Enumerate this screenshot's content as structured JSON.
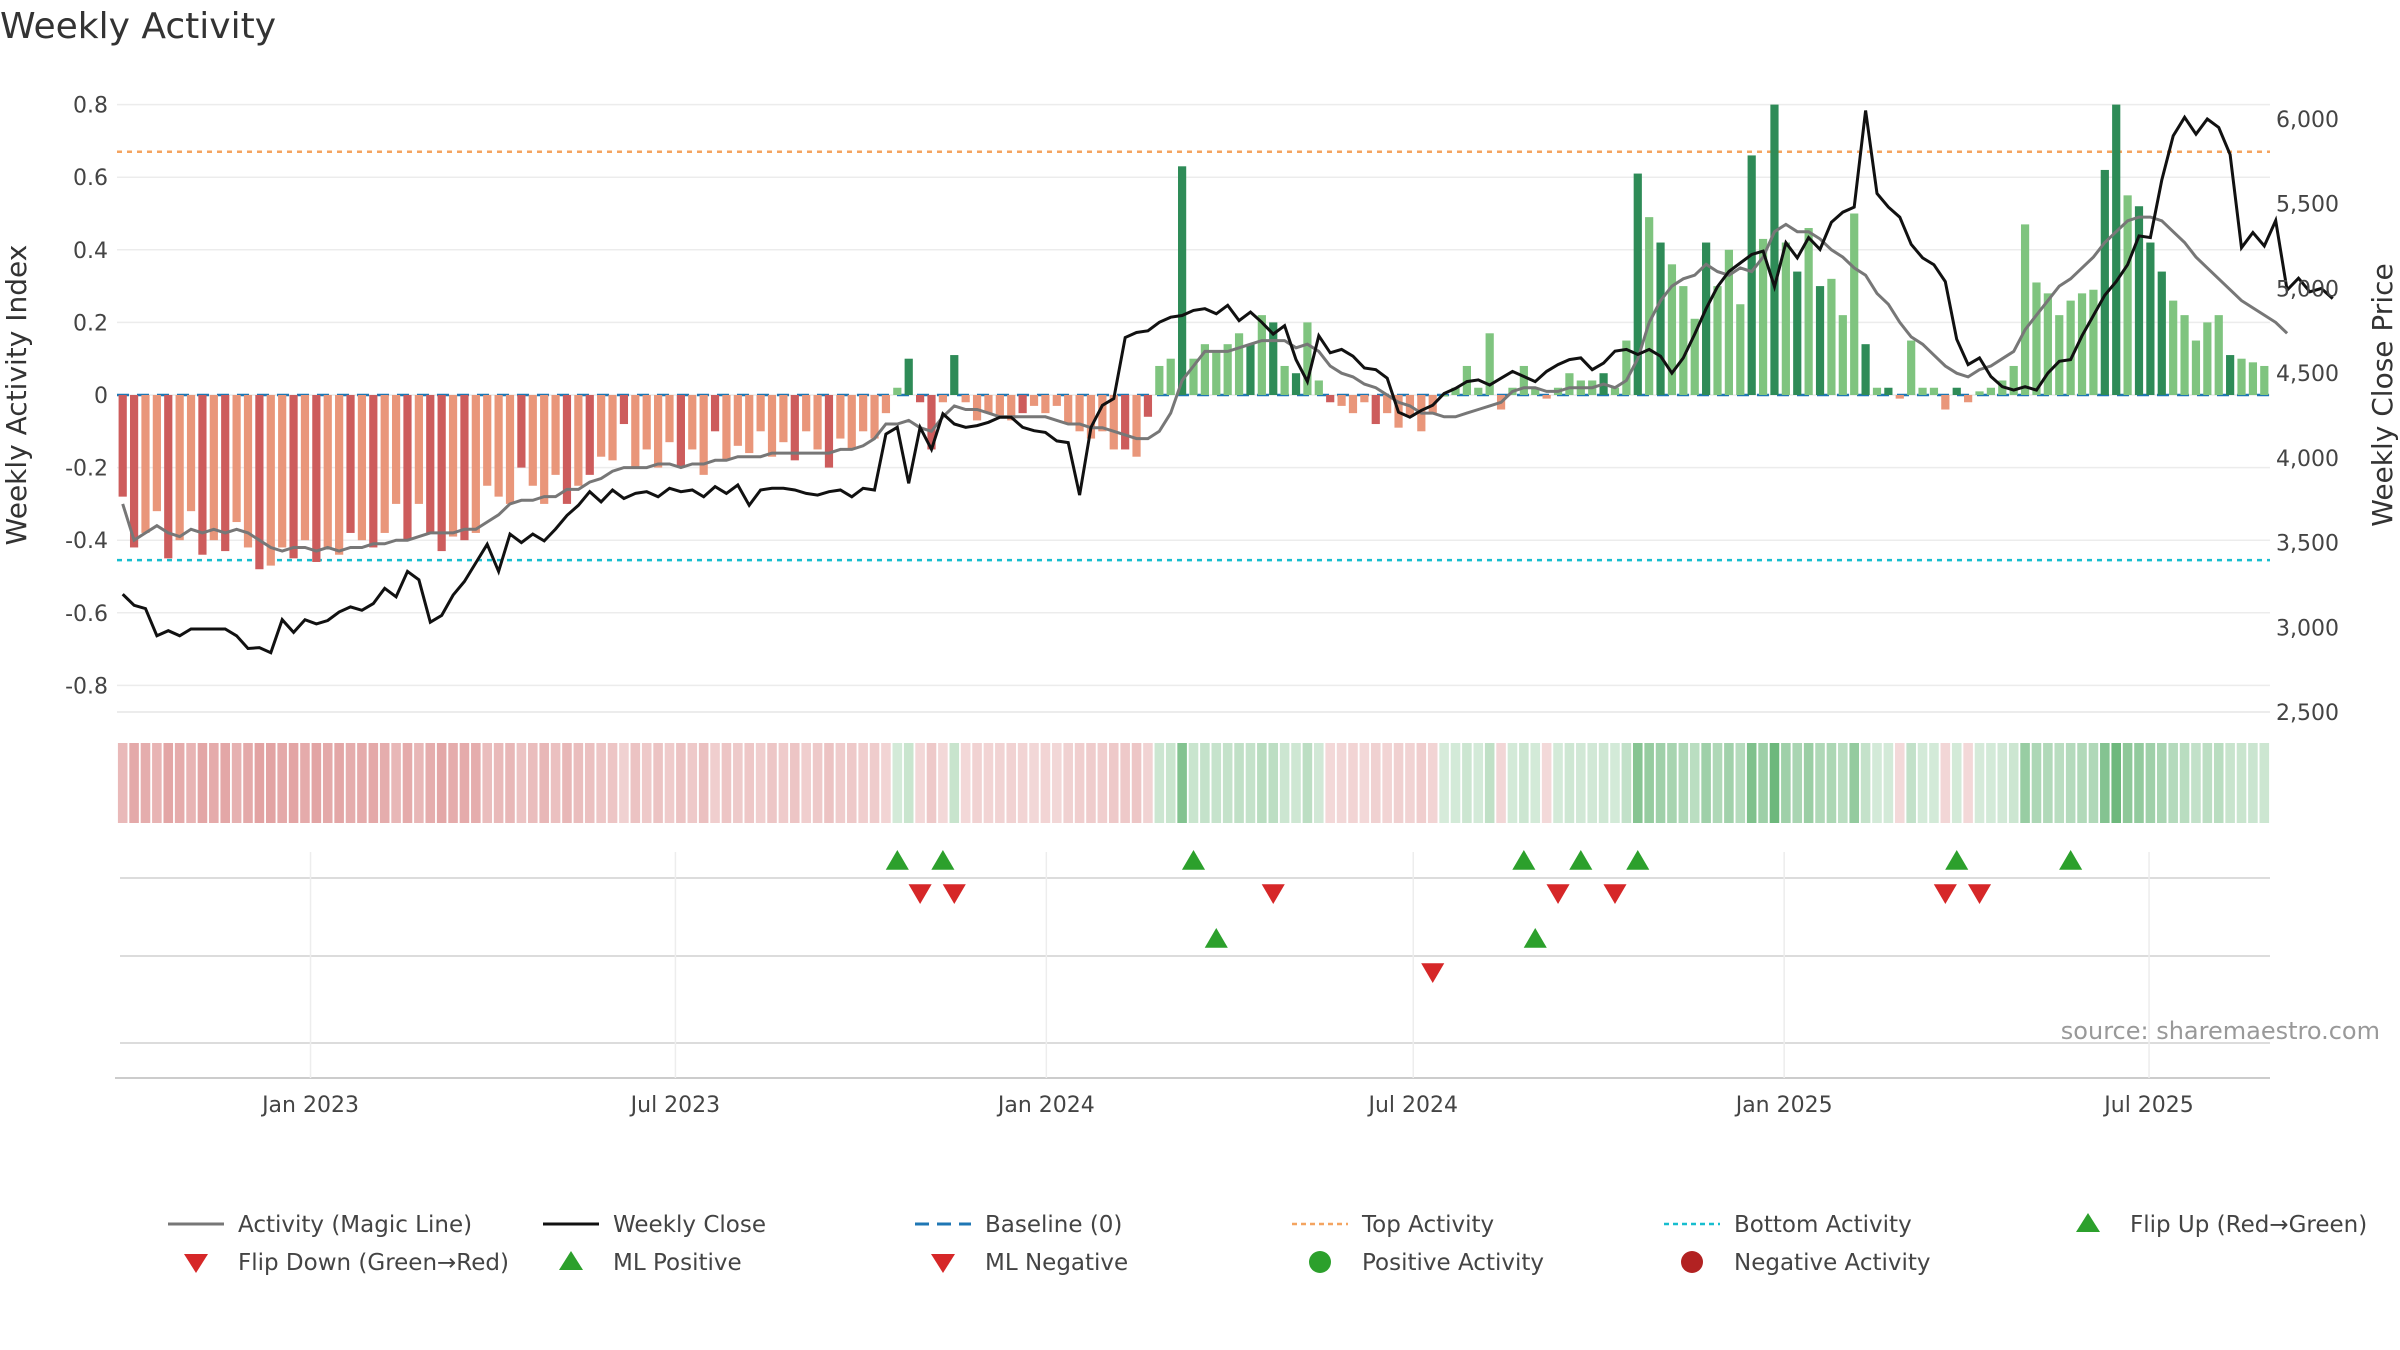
{
  "chart_data": {
    "type": "bar",
    "title": "Weekly Activity",
    "ylabel_left": "Weekly Activity Index",
    "ylabel_right": "Weekly Close Price",
    "left_axis": {
      "ylim": [
        -0.88,
        0.8
      ],
      "ticks": [
        "0.8",
        "0.6",
        "0.4",
        "0.2",
        "0",
        "-0.2",
        "-0.4",
        "-0.6",
        "-0.8"
      ],
      "tick_values": [
        0.8,
        0.6,
        0.4,
        0.2,
        0,
        -0.2,
        -0.4,
        -0.6,
        -0.8
      ]
    },
    "right_axis": {
      "ylim": [
        2500,
        6250
      ],
      "ticks": [
        "6,000",
        "5,500",
        "5,000",
        "4,500",
        "4,000",
        "3,500",
        "3,000",
        "2,500"
      ],
      "tick_values": [
        6000,
        5500,
        5000,
        4500,
        4000,
        3500,
        3000,
        2500
      ]
    },
    "x_range_days": [
      0,
      1068
    ],
    "x_ticks": [
      {
        "label": "Jan 2023",
        "day": 96
      },
      {
        "label": "Jul 2023",
        "day": 277
      },
      {
        "label": "Jan 2024",
        "day": 461
      },
      {
        "label": "Jul 2024",
        "day": 643
      },
      {
        "label": "Jan 2025",
        "day": 827
      },
      {
        "label": "Jul 2025",
        "day": 1008
      }
    ],
    "reference_lines": {
      "top_activity": 0.67,
      "bottom_activity": -0.455,
      "baseline": 0
    },
    "colors": {
      "strong_green": "#2e8b57",
      "light_green": "#7fc47f",
      "strong_red": "#cd5c5c",
      "light_red": "#e9967a",
      "magic_line": "#777777",
      "close_line": "#111111",
      "baseline": "#1f77b4",
      "top": "#f4a460",
      "bottom": "#17becf",
      "marker_up": "#2ca02c",
      "marker_down": "#d62728",
      "dot_green": "#2ca02c",
      "dot_red": "#b22222"
    },
    "activity_values": [
      -0.28,
      -0.42,
      -0.38,
      -0.32,
      -0.45,
      -0.4,
      -0.32,
      -0.44,
      -0.4,
      -0.43,
      -0.35,
      -0.42,
      -0.48,
      -0.47,
      -0.42,
      -0.45,
      -0.4,
      -0.46,
      -0.42,
      -0.44,
      -0.38,
      -0.4,
      -0.42,
      -0.38,
      -0.3,
      -0.4,
      -0.3,
      -0.38,
      -0.43,
      -0.39,
      -0.4,
      -0.38,
      -0.25,
      -0.28,
      -0.3,
      -0.2,
      -0.25,
      -0.3,
      -0.22,
      -0.3,
      -0.25,
      -0.22,
      -0.17,
      -0.18,
      -0.08,
      -0.2,
      -0.15,
      -0.2,
      -0.13,
      -0.2,
      -0.15,
      -0.22,
      -0.1,
      -0.18,
      -0.14,
      -0.16,
      -0.1,
      -0.17,
      -0.13,
      -0.18,
      -0.1,
      -0.15,
      -0.2,
      -0.12,
      -0.15,
      -0.1,
      -0.12,
      -0.05,
      0.02,
      0.1,
      -0.02,
      -0.15,
      -0.02,
      0.11,
      -0.02,
      -0.07,
      -0.05,
      -0.06,
      -0.07,
      -0.05,
      -0.03,
      -0.05,
      -0.03,
      -0.08,
      -0.1,
      -0.12,
      -0.1,
      -0.15,
      -0.15,
      -0.17,
      -0.06,
      0.08,
      0.1,
      0.63,
      0.1,
      0.14,
      0.12,
      0.14,
      0.17,
      0.14,
      0.22,
      0.2,
      0.08,
      0.06,
      0.2,
      0.04,
      -0.02,
      -0.03,
      -0.05,
      -0.02,
      -0.08,
      -0.05,
      -0.09,
      -0.06,
      -0.1,
      -0.05,
      0,
      0.02,
      0.08,
      0.02,
      0.17,
      -0.04,
      0.02,
      0.08,
      0.02,
      -0.01,
      0.02,
      0.06,
      0.04,
      0.04,
      0.06,
      0.02,
      0.15,
      0.61,
      0.49,
      0.42,
      0.36,
      0.3,
      0.21,
      0.42,
      0.3,
      0.4,
      0.25,
      0.66,
      0.43,
      0.8,
      0.42,
      0.34,
      0.46,
      0.3,
      0.32,
      0.22,
      0.5,
      0.14,
      0.02,
      0.02,
      -0.01,
      0.15,
      0.02,
      0.02,
      -0.04,
      0.02,
      -0.02,
      0.01,
      0.02,
      0.04,
      0.08,
      0.47,
      0.31,
      0.28,
      0.22,
      0.26,
      0.28,
      0.29,
      0.62,
      0.8,
      0.55,
      0.52,
      0.42,
      0.34,
      0.26,
      0.22,
      0.15,
      0.2,
      0.22,
      0.11,
      0.1,
      0.09,
      0.08
    ],
    "strong_indices": [
      0,
      1,
      4,
      7,
      9,
      12,
      15,
      17,
      20,
      22,
      25,
      27,
      28,
      30,
      35,
      39,
      41,
      44,
      49,
      52,
      59,
      62,
      69,
      70,
      71,
      73,
      79,
      88,
      90,
      93,
      99,
      101,
      103,
      106,
      110,
      130,
      133,
      135,
      139,
      143,
      145,
      147,
      149,
      153,
      155,
      161,
      174,
      175,
      177,
      178,
      179,
      185,
      191
    ],
    "magic_line": [
      -0.3,
      -0.4,
      -0.38,
      -0.36,
      -0.38,
      -0.39,
      -0.37,
      -0.38,
      -0.37,
      -0.38,
      -0.37,
      -0.38,
      -0.4,
      -0.42,
      -0.43,
      -0.42,
      -0.42,
      -0.43,
      -0.42,
      -0.43,
      -0.42,
      -0.42,
      -0.41,
      -0.41,
      -0.4,
      -0.4,
      -0.39,
      -0.38,
      -0.38,
      -0.38,
      -0.37,
      -0.37,
      -0.35,
      -0.33,
      -0.3,
      -0.29,
      -0.29,
      -0.28,
      -0.28,
      -0.26,
      -0.26,
      -0.24,
      -0.23,
      -0.21,
      -0.2,
      -0.2,
      -0.2,
      -0.19,
      -0.19,
      -0.2,
      -0.19,
      -0.19,
      -0.18,
      -0.18,
      -0.17,
      -0.17,
      -0.17,
      -0.16,
      -0.16,
      -0.16,
      -0.16,
      -0.16,
      -0.16,
      -0.15,
      -0.15,
      -0.14,
      -0.12,
      -0.08,
      -0.08,
      -0.07,
      -0.09,
      -0.1,
      -0.06,
      -0.03,
      -0.04,
      -0.04,
      -0.05,
      -0.06,
      -0.06,
      -0.06,
      -0.06,
      -0.06,
      -0.07,
      -0.08,
      -0.08,
      -0.09,
      -0.09,
      -0.1,
      -0.11,
      -0.12,
      -0.12,
      -0.1,
      -0.05,
      0.04,
      0.08,
      0.12,
      0.12,
      0.12,
      0.13,
      0.14,
      0.15,
      0.15,
      0.15,
      0.13,
      0.14,
      0.12,
      0.08,
      0.06,
      0.05,
      0.03,
      0.02,
      0.0,
      -0.02,
      -0.03,
      -0.05,
      -0.05,
      -0.06,
      -0.06,
      -0.05,
      -0.04,
      -0.03,
      -0.02,
      0.01,
      0.02,
      0.02,
      0.01,
      0.01,
      0.02,
      0.02,
      0.02,
      0.03,
      0.02,
      0.04,
      0.1,
      0.2,
      0.26,
      0.3,
      0.32,
      0.33,
      0.36,
      0.34,
      0.33,
      0.35,
      0.34,
      0.38,
      0.45,
      0.47,
      0.45,
      0.45,
      0.43,
      0.4,
      0.38,
      0.35,
      0.33,
      0.28,
      0.25,
      0.2,
      0.16,
      0.14,
      0.11,
      0.08,
      0.06,
      0.05,
      0.07,
      0.08,
      0.1,
      0.12,
      0.18,
      0.22,
      0.26,
      0.3,
      0.32,
      0.35,
      0.38,
      0.42,
      0.45,
      0.48,
      0.49,
      0.49,
      0.48,
      0.45,
      0.42,
      0.38,
      0.35,
      0.32,
      0.29,
      0.26,
      0.24,
      0.22,
      0.2,
      0.17
    ],
    "weekly_close": [
      3195,
      3130,
      3110,
      2950,
      2980,
      2950,
      2990,
      2990,
      2990,
      2990,
      2950,
      2875,
      2880,
      2850,
      3045,
      2970,
      3045,
      3020,
      3040,
      3090,
      3120,
      3100,
      3140,
      3230,
      3180,
      3330,
      3280,
      3030,
      3070,
      3190,
      3270,
      3380,
      3490,
      3330,
      3550,
      3500,
      3550,
      3510,
      3580,
      3660,
      3720,
      3800,
      3740,
      3810,
      3760,
      3790,
      3800,
      3770,
      3820,
      3800,
      3810,
      3770,
      3830,
      3790,
      3840,
      3720,
      3810,
      3820,
      3820,
      3810,
      3790,
      3780,
      3800,
      3810,
      3770,
      3820,
      3810,
      4140,
      4180,
      3850,
      4180,
      4050,
      4260,
      4200,
      4180,
      4190,
      4210,
      4240,
      4240,
      4180,
      4160,
      4150,
      4100,
      4090,
      3780,
      4180,
      4310,
      4350,
      4710,
      4740,
      4750,
      4800,
      4830,
      4840,
      4870,
      4880,
      4850,
      4900,
      4810,
      4860,
      4800,
      4730,
      4780,
      4580,
      4450,
      4720,
      4620,
      4640,
      4600,
      4530,
      4520,
      4470,
      4270,
      4240,
      4280,
      4310,
      4380,
      4410,
      4450,
      4460,
      4430,
      4470,
      4510,
      4480,
      4450,
      4510,
      4550,
      4580,
      4590,
      4520,
      4560,
      4630,
      4640,
      4610,
      4640,
      4600,
      4500,
      4590,
      4730,
      4880,
      5010,
      5100,
      5150,
      5200,
      5220,
      5010,
      5270,
      5180,
      5300,
      5230,
      5390,
      5450,
      5480,
      6050,
      5560,
      5480,
      5420,
      5260,
      5180,
      5140,
      5040,
      4700,
      4550,
      4590,
      4480,
      4420,
      4400,
      4420,
      4400,
      4500,
      4570,
      4580,
      4720,
      4840,
      4960,
      5040,
      5140,
      5310,
      5300,
      5640,
      5900,
      6010,
      5910,
      6000,
      5950,
      5790,
      5240,
      5330,
      5250,
      5400,
      4990,
      5060,
      4980,
      5000,
      4940
    ],
    "heat_labels_note": "",
    "flip_up_weeks": [
      68,
      72,
      94,
      123,
      128,
      133,
      161,
      171
    ],
    "flip_down_weeks": [
      70,
      73,
      101,
      126,
      131,
      160,
      163
    ],
    "ml_positive_weeks": [
      96,
      124
    ],
    "ml_negative_weeks": [
      115
    ],
    "legend": [
      {
        "label": "Activity (Magic Line)",
        "kind": "line",
        "color": "#777777"
      },
      {
        "label": "Weekly Close",
        "kind": "line",
        "color": "#111111"
      },
      {
        "label": "Baseline (0)",
        "kind": "dash",
        "color": "#1f77b4"
      },
      {
        "label": "Top Activity",
        "kind": "dot-line",
        "color": "#f4a460"
      },
      {
        "label": "Bottom Activity",
        "kind": "dot-line",
        "color": "#17becf"
      },
      {
        "label": "Flip Up (Red→Green)",
        "kind": "tri-up",
        "color": "#2ca02c"
      },
      {
        "label": "Flip Down (Green→Red)",
        "kind": "tri-down",
        "color": "#d62728"
      },
      {
        "label": "ML Positive",
        "kind": "tri-up",
        "color": "#2ca02c"
      },
      {
        "label": "ML Negative",
        "kind": "tri-down",
        "color": "#d62728"
      },
      {
        "label": "Positive Activity",
        "kind": "dot",
        "color": "#2ca02c"
      },
      {
        "label": "Negative Activity",
        "kind": "dot",
        "color": "#b22222"
      }
    ],
    "source": "source: sharemaestro.com"
  }
}
